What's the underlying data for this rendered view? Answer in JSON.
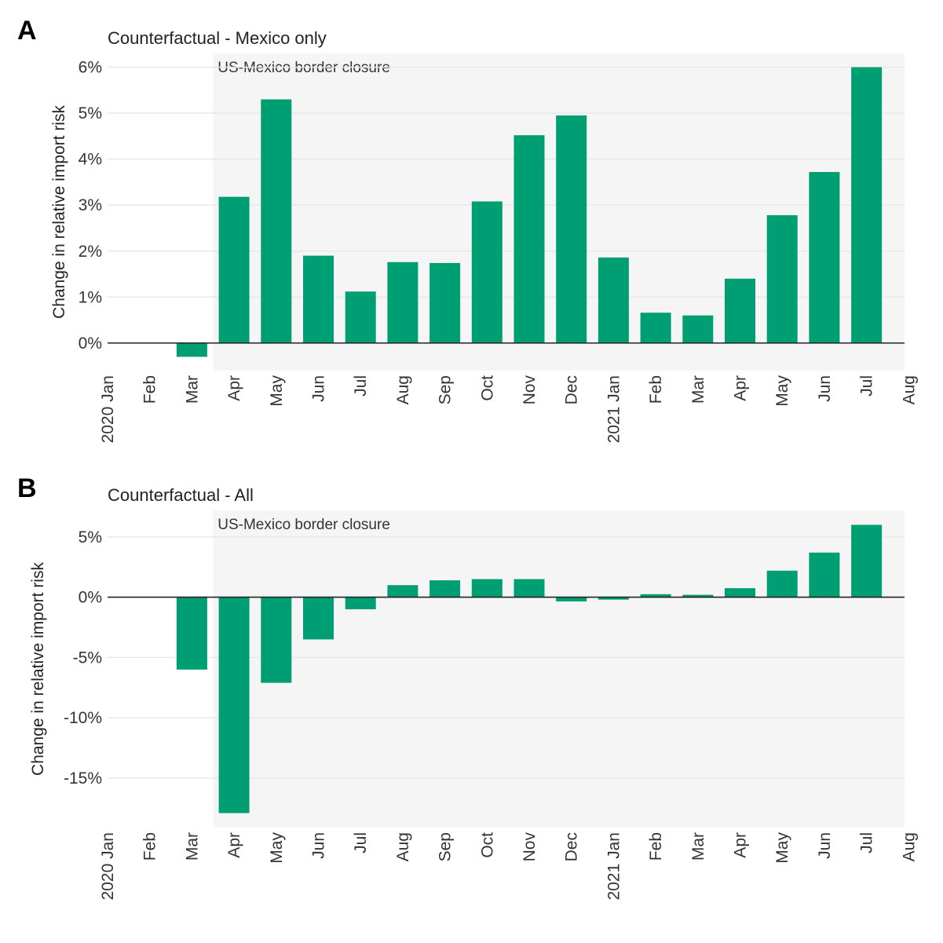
{
  "colors": {
    "bar": "#009E73",
    "shade": "#F5F5F5",
    "grid": "#E8E8E8",
    "zero": "#222222"
  },
  "x_ticks": [
    "2020 Jan",
    "Feb",
    "Mar",
    "Apr",
    "May",
    "Jun",
    "Jul",
    "Aug",
    "Sep",
    "Oct",
    "Nov",
    "Dec",
    "2021 Jan",
    "Feb",
    "Mar",
    "Apr",
    "May",
    "Jun",
    "Jul",
    "Aug"
  ],
  "chart_data": [
    {
      "type": "bar",
      "panel": "A",
      "title": "Counterfactual - Mexico only",
      "ylabel": "Change in relative import risk",
      "annotation": "US-Mexico border closure",
      "categories": [
        "2020 Mar",
        "2020 Apr",
        "2020 May",
        "2020 Jun",
        "2020 Jul",
        "2020 Aug",
        "2020 Sep",
        "2020 Oct",
        "2020 Nov",
        "2020 Dec",
        "2021 Jan",
        "2021 Feb",
        "2021 Mar",
        "2021 Apr",
        "2021 May",
        "2021 Jun",
        "2021 Jul"
      ],
      "values": [
        -0.3,
        3.18,
        5.3,
        1.9,
        1.12,
        1.76,
        1.74,
        3.08,
        4.52,
        4.95,
        1.86,
        0.66,
        0.6,
        1.4,
        2.78,
        3.72,
        6.0
      ],
      "ylim": [
        -0.6,
        6.3
      ],
      "yticks": [
        0,
        1,
        2,
        3,
        4,
        5,
        6
      ],
      "ytick_labels": [
        "0%",
        "1%",
        "2%",
        "3%",
        "4%",
        "5%",
        "6%"
      ],
      "grid": true
    },
    {
      "type": "bar",
      "panel": "B",
      "title": "Counterfactual - All",
      "ylabel": "Change in relative import risk",
      "annotation": "US-Mexico border closure",
      "categories": [
        "2020 Mar",
        "2020 Apr",
        "2020 May",
        "2020 Jun",
        "2020 Jul",
        "2020 Aug",
        "2020 Sep",
        "2020 Oct",
        "2020 Nov",
        "2020 Dec",
        "2021 Jan",
        "2021 Feb",
        "2021 Mar",
        "2021 Apr",
        "2021 May",
        "2021 Jun",
        "2021 Jul"
      ],
      "values": [
        -6.0,
        -17.9,
        -7.1,
        -3.5,
        -1.0,
        1.0,
        1.4,
        1.5,
        1.5,
        -0.35,
        -0.2,
        0.25,
        0.2,
        0.75,
        2.2,
        3.7,
        6.0
      ],
      "ylim": [
        -19.1,
        7.2
      ],
      "yticks": [
        5,
        0,
        -5,
        -10,
        -15
      ],
      "ytick_labels": [
        "5%",
        "0%",
        "-5%",
        "-10%",
        "-15%"
      ],
      "grid": true
    }
  ]
}
